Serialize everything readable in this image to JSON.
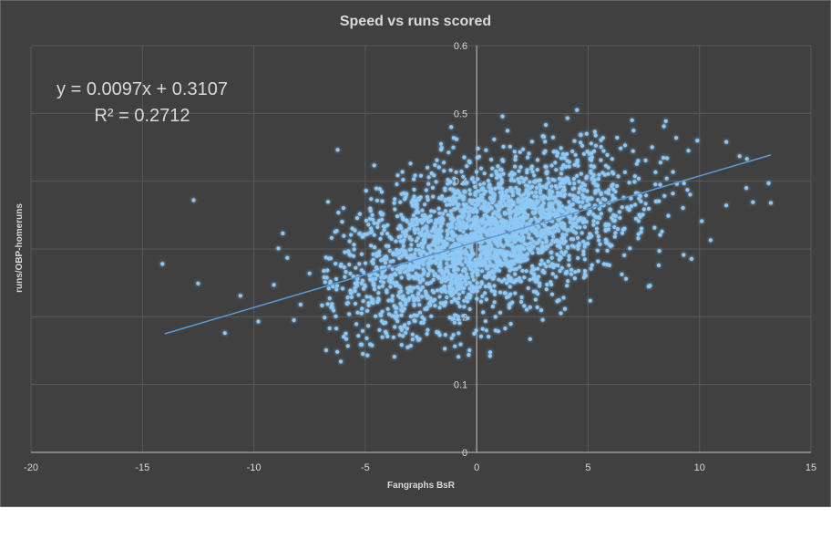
{
  "chart_data": {
    "type": "scatter",
    "title": "Speed vs runs scored",
    "xlabel": "Fangraphs BsR",
    "ylabel": "runs/OBP-homeruns",
    "xlim": [
      -20,
      15
    ],
    "ylim": [
      0,
      0.6
    ],
    "x_ticks": [
      "-20",
      "-15",
      "-10",
      "-5",
      "0",
      "5",
      "10",
      "15"
    ],
    "y_ticks": [
      "0",
      "0.1",
      "0.2",
      "0.3",
      "0.4",
      "0.5",
      "0.6"
    ],
    "grid": true,
    "legend": "none",
    "trendline": {
      "type": "linear",
      "slope": 0.0097,
      "intercept": 0.3107,
      "equation": "y = 0.0097x + 0.3107",
      "r_squared": "R² = 0.2712",
      "x_range": [
        -14,
        13.2
      ]
    },
    "colors": {
      "background": "#404040",
      "points": "#8ec8f5",
      "trendline": "#5b9bd5",
      "text": "#d9d9d9",
      "grid": "#595959"
    },
    "series": [
      {
        "points": [
          [
            -14.1,
            0.278
          ],
          [
            -12.7,
            0.372
          ],
          [
            -12.5,
            0.249
          ],
          [
            -11.3,
            0.176
          ],
          [
            -10.6,
            0.231
          ],
          [
            -9.8,
            0.193
          ],
          [
            -8.9,
            0.301
          ],
          [
            -8.7,
            0.323
          ],
          [
            -8.5,
            0.287
          ],
          [
            -8.2,
            0.195
          ],
          [
            -7.5,
            0.264
          ],
          [
            -6.8,
            0.251
          ],
          [
            -6.6,
            0.183
          ],
          [
            -6.1,
            0.134
          ],
          [
            -5.2,
            0.159
          ],
          [
            -4.9,
            0.143
          ],
          [
            -4.0,
            0.171
          ],
          [
            -3.1,
            0.155
          ],
          [
            -2.5,
            0.408
          ],
          [
            -1.6,
            0.455
          ],
          [
            -0.9,
            0.462
          ],
          [
            -0.4,
            0.198
          ],
          [
            0.2,
            0.171
          ],
          [
            0.6,
            0.142
          ],
          [
            1.5,
            0.451
          ],
          [
            2.0,
            0.222
          ],
          [
            3.1,
            0.483
          ],
          [
            4.5,
            0.505
          ],
          [
            5.3,
            0.473
          ],
          [
            6.2,
            0.318
          ],
          [
            6.7,
            0.256
          ],
          [
            7.6,
            0.379
          ],
          [
            8.4,
            0.481
          ],
          [
            8.6,
            0.349
          ],
          [
            9.5,
            0.445
          ],
          [
            10.1,
            0.341
          ],
          [
            10.5,
            0.313
          ],
          [
            11.2,
            0.458
          ],
          [
            11.8,
            0.437
          ],
          [
            12.1,
            0.39
          ],
          [
            12.4,
            0.369
          ],
          [
            13.2,
            0.368
          ],
          [
            13.1,
            0.397
          ],
          [
            -9.1,
            0.247
          ],
          [
            -7.9,
            0.218
          ],
          [
            -3.6,
            0.213
          ],
          [
            2.4,
            0.214
          ],
          [
            3.9,
            0.228
          ]
        ]
      }
    ]
  }
}
